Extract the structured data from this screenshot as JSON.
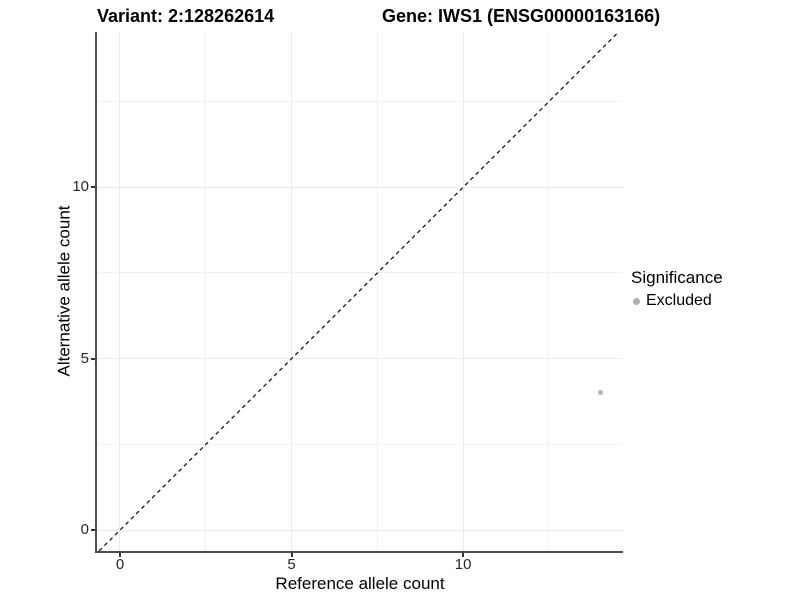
{
  "chart_data": {
    "type": "scatter",
    "titles": {
      "variant": "Variant: 2:128262614",
      "gene": "Gene: IWS1 (ENSG00000163166)"
    },
    "xlabel": "Reference allele count",
    "ylabel": "Alternative allele count",
    "x_ticks": [
      "0",
      "5",
      "10"
    ],
    "x_tick_values": [
      0,
      5,
      10
    ],
    "y_ticks": [
      "0",
      "5",
      "10"
    ],
    "y_tick_values": [
      0,
      5,
      10
    ],
    "xlim": [
      -0.67,
      14.66
    ],
    "ylim": [
      -0.61,
      14.53
    ],
    "grid": {
      "x_major": [
        0,
        5,
        10
      ],
      "x_minor": [
        2.5,
        7.5,
        12.5
      ],
      "y_major": [
        0,
        5,
        10
      ],
      "y_minor": [
        2.5,
        7.5,
        12.5
      ]
    },
    "points": [
      {
        "x": 14,
        "y": 4,
        "series": "Excluded"
      }
    ],
    "identity_line": {
      "style": "dashed",
      "slope": 1,
      "intercept": 0
    },
    "legend": {
      "position": "right",
      "title": "Significance",
      "entries": [
        {
          "label": "Excluded",
          "color": "#b0b0b0",
          "shape": "circle"
        }
      ]
    },
    "colors": {
      "background": "#ffffff",
      "point_excluded": "#b3b3b3",
      "axis_line": "#4d4d4d",
      "grid_major": "#ebebeb",
      "grid_minor": "#f2f2f2",
      "dashed_line": "#1a1a1a",
      "text": "#000000",
      "tick_text": "#262626"
    }
  }
}
